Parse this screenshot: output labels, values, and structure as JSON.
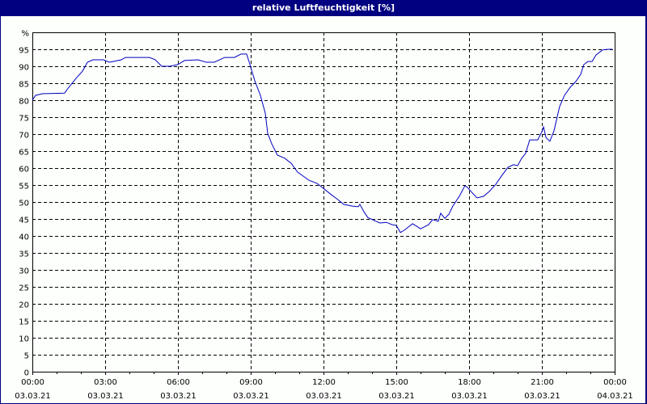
{
  "window": {
    "title": "relative Luftfeuchtigkeit [%]"
  },
  "chart_data": {
    "type": "line",
    "title": "relative Luftfeuchtigkeit [%]",
    "xlabel": "",
    "ylabel": "%",
    "ylim": [
      0,
      100
    ],
    "xlim_hours": [
      0,
      24
    ],
    "grid": true,
    "legend": null,
    "y_ticks": [
      "0",
      "5",
      "10",
      "15",
      "20",
      "25",
      "30",
      "35",
      "40",
      "45",
      "50",
      "55",
      "60",
      "65",
      "70",
      "75",
      "80",
      "85",
      "90",
      "95",
      "%"
    ],
    "x_ticks": [
      {
        "time": "00:00",
        "date": "03.03.21"
      },
      {
        "time": "03:00",
        "date": "03.03.21"
      },
      {
        "time": "06:00",
        "date": "03.03.21"
      },
      {
        "time": "09:00",
        "date": "03.03.21"
      },
      {
        "time": "12:00",
        "date": "03.03.21"
      },
      {
        "time": "15:00",
        "date": "03.03.21"
      },
      {
        "time": "18:00",
        "date": "03.03.21"
      },
      {
        "time": "21:00",
        "date": "03.03.21"
      },
      {
        "time": "00:00",
        "date": "04.03.21"
      }
    ],
    "series": [
      {
        "name": "relative Luftfeuchtigkeit",
        "color": "#0000c0",
        "x_hours": [
          0,
          0.13,
          0.4,
          1.33,
          1.5,
          1.83,
          2.07,
          2.27,
          2.5,
          2.93,
          3.17,
          3.33,
          3.67,
          3.83,
          4.83,
          5.07,
          5.33,
          5.67,
          6.0,
          6.27,
          6.83,
          7.17,
          7.5,
          7.93,
          8.33,
          8.6,
          8.83,
          8.93,
          9.17,
          9.4,
          9.6,
          9.7,
          9.87,
          10.1,
          10.4,
          10.67,
          10.93,
          11.17,
          11.4,
          11.73,
          12.0,
          12.33,
          12.6,
          12.83,
          13.17,
          13.43,
          13.5,
          13.67,
          13.83,
          14.17,
          14.33,
          14.6,
          14.83,
          15.0,
          15.17,
          15.33,
          15.67,
          15.83,
          16.0,
          16.33,
          16.5,
          16.73,
          16.83,
          17.0,
          17.17,
          17.33,
          17.6,
          17.83,
          17.93,
          18.17,
          18.33,
          18.6,
          18.83,
          19.1,
          19.33,
          19.6,
          19.83,
          20.0,
          20.17,
          20.33,
          20.5,
          20.83,
          21.0,
          21.07,
          21.17,
          21.33,
          21.5,
          21.73,
          21.93,
          22.17,
          22.4,
          22.6,
          22.73,
          22.9,
          23.07,
          23.23,
          23.5,
          23.73,
          23.9
        ],
        "values": [
          80,
          81.4,
          81.9,
          82.1,
          83.8,
          86.7,
          88.6,
          91.2,
          91.9,
          91.9,
          91.2,
          91.4,
          91.9,
          92.6,
          92.6,
          91.9,
          90,
          90,
          90.5,
          91.7,
          91.9,
          91.2,
          91.2,
          92.6,
          92.6,
          93.6,
          93.6,
          91.4,
          85.7,
          81.4,
          76.2,
          70.2,
          67.1,
          63.8,
          62.9,
          61.4,
          58.8,
          57.6,
          56.4,
          55.5,
          54,
          52.1,
          50.7,
          49.3,
          48.8,
          48.6,
          49.3,
          47.1,
          45.4,
          44.3,
          43.8,
          44,
          43.3,
          43.1,
          41,
          41.7,
          43.6,
          42.9,
          42.1,
          43.3,
          44.8,
          44.3,
          46.7,
          45.2,
          46.4,
          48.8,
          51.7,
          54.8,
          54.3,
          52.4,
          51.2,
          51.7,
          53.1,
          55.2,
          57.6,
          60.2,
          61,
          60.7,
          62.9,
          64.3,
          68.3,
          68.3,
          70.7,
          72.1,
          69,
          67.9,
          71,
          78.1,
          81.4,
          83.8,
          85.5,
          87.6,
          90.5,
          91.4,
          91.4,
          93.3,
          94.8,
          95,
          95
        ]
      }
    ]
  }
}
